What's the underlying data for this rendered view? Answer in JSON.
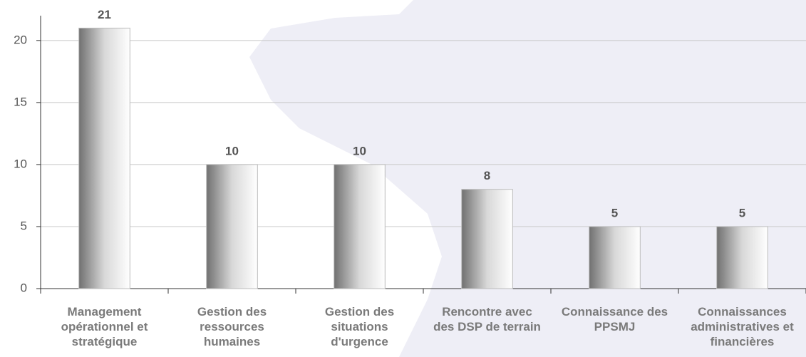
{
  "chart_data": {
    "type": "bar",
    "categories": [
      "Management opérationnel et stratégique",
      "Gestion des ressources humaines",
      "Gestion des situations d'urgence",
      "Rencontre avec des DSP de terrain",
      "Connaissance des PPSMJ",
      "Connaissances administratives et financières"
    ],
    "values": [
      21,
      10,
      10,
      8,
      5,
      5
    ],
    "ylim": [
      0,
      22
    ],
    "yticks": [
      0,
      5,
      10,
      15,
      20
    ],
    "grid": true
  }
}
